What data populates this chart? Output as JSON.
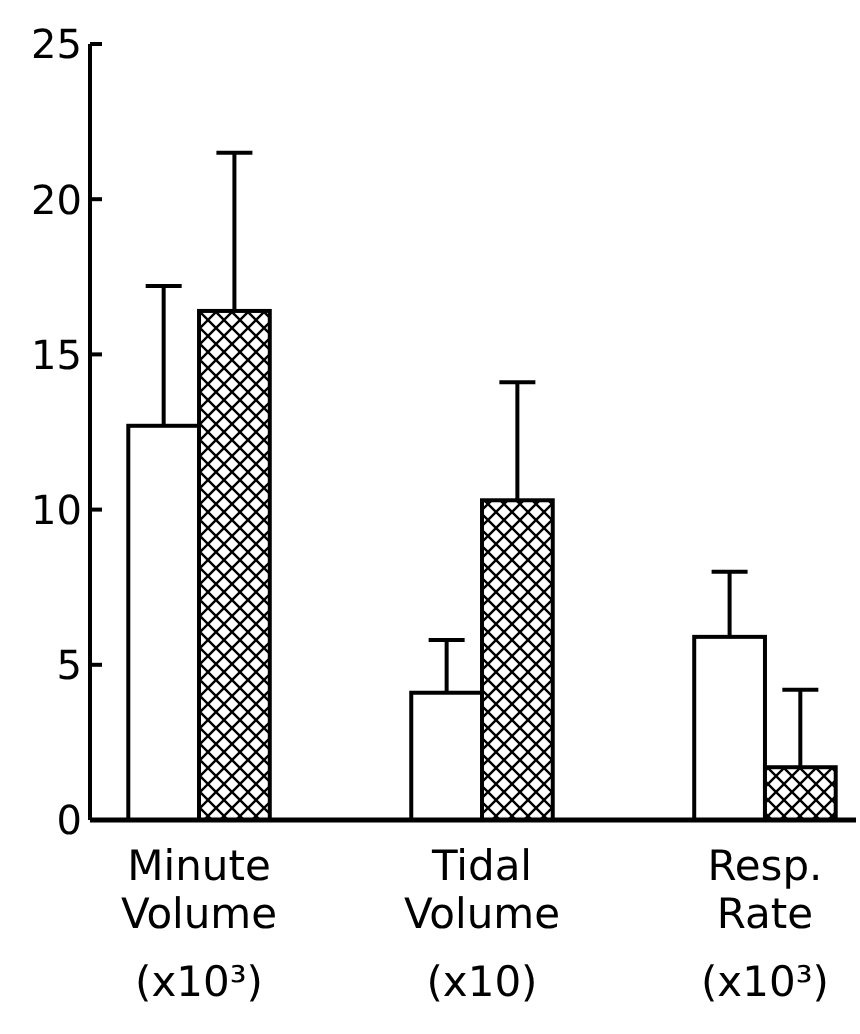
{
  "chart_data": {
    "type": "bar",
    "categories": [
      "Minute Volume (x10³)",
      "Tidal Volume (x10)",
      "Resp. Rate (x10³)"
    ],
    "series": [
      {
        "color": "#ffffff",
        "values": [
          12.7,
          4.1,
          5.9
        ],
        "errors": [
          [
            12.7,
            17.2
          ],
          [
            4.1,
            5.8
          ],
          [
            5.9,
            8.0
          ]
        ]
      },
      {
        "color": "#000000",
        "values": [
          16.4,
          10.3,
          1.7
        ],
        "errors": [
          [
            16.4,
            21.5
          ],
          [
            10.3,
            14.1
          ],
          [
            1.7,
            4.2
          ]
        ]
      }
    ],
    "ylim": [
      0,
      25
    ],
    "yticks": [
      0,
      5,
      10,
      15,
      20,
      25
    ],
    "grid": false
  }
}
